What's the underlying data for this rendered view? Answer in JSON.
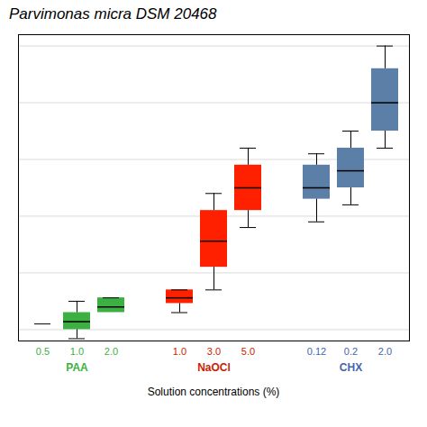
{
  "chart_data": {
    "type": "box",
    "title": "Parvimonas micra DSM 20468",
    "xlabel": "Solution concentrations (%)",
    "ylim": [
      9.0,
      36
    ],
    "yticks": [
      10,
      15,
      20,
      25,
      30,
      35
    ],
    "grid": true,
    "tick_labels": "x",
    "series": [
      {
        "name": "PAA",
        "color": "#3cb043",
        "label_color": "#3cb043",
        "categories": [
          "0.5",
          "1.0",
          "2.0"
        ],
        "q1": [
          10.5,
          10.0,
          11.5
        ],
        "median": [
          10.5,
          10.7,
          12.0
        ],
        "q3": [
          10.5,
          11.5,
          12.8
        ],
        "whislo": [
          10.5,
          9.2,
          11.5
        ],
        "whishi": [
          10.5,
          12.5,
          12.8
        ]
      },
      {
        "name": "NaOCl",
        "color": "#ff2000",
        "label_color": "#cc2200",
        "categories": [
          "1.0",
          "3.0",
          "5.0"
        ],
        "q1": [
          12.3,
          15.5,
          20.5
        ],
        "median": [
          12.8,
          17.8,
          22.5
        ],
        "q3": [
          13.5,
          20.5,
          24.5
        ],
        "whislo": [
          11.5,
          13.5,
          19.0
        ],
        "whishi": [
          13.5,
          22.0,
          26.0
        ]
      },
      {
        "name": "CHX",
        "color": "#5b7fa6",
        "label_color": "#4466aa",
        "categories": [
          "0.12",
          "0.2",
          "2.0"
        ],
        "q1": [
          21.5,
          22.5,
          27.5
        ],
        "median": [
          22.5,
          24.0,
          30.0
        ],
        "q3": [
          24.5,
          26.0,
          33.0
        ],
        "whislo": [
          19.5,
          21.0,
          26.0
        ],
        "whishi": [
          25.5,
          27.5,
          35.0
        ]
      }
    ]
  }
}
